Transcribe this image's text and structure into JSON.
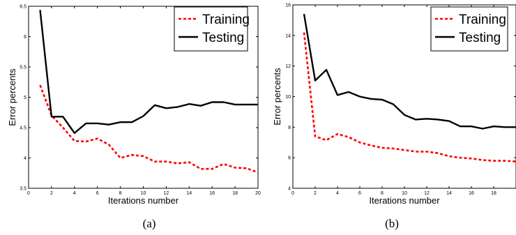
{
  "chart_data": [
    {
      "type": "line",
      "caption": "(a)",
      "xlabel": "Iterations number",
      "ylabel": "Error percents",
      "xlim": [
        0,
        20
      ],
      "ylim": [
        3.5,
        6.5
      ],
      "xticks": [
        0,
        2,
        4,
        6,
        8,
        10,
        12,
        14,
        16,
        18,
        20
      ],
      "yticks": [
        3.5,
        4,
        4.5,
        5,
        5.5,
        6,
        6.5
      ],
      "grid": false,
      "legend_position": "top-right",
      "x": [
        1,
        2,
        3,
        4,
        5,
        6,
        7,
        8,
        9,
        10,
        11,
        12,
        13,
        14,
        15,
        16,
        17,
        18,
        19,
        20
      ],
      "series": [
        {
          "name": "Training",
          "color": "#ff0000",
          "style": "dashed",
          "values": [
            5.2,
            4.7,
            4.5,
            4.28,
            4.27,
            4.32,
            4.22,
            4.0,
            4.05,
            4.03,
            3.94,
            3.94,
            3.91,
            3.93,
            3.82,
            3.82,
            3.9,
            3.84,
            3.83,
            3.76
          ]
        },
        {
          "name": "Testing",
          "color": "#000000",
          "style": "solid",
          "values": [
            6.44,
            4.68,
            4.68,
            4.41,
            4.57,
            4.57,
            4.55,
            4.59,
            4.59,
            4.69,
            4.87,
            4.82,
            4.84,
            4.89,
            4.86,
            4.92,
            4.92,
            4.88,
            4.88,
            4.88
          ]
        }
      ]
    },
    {
      "type": "line",
      "caption": "(b)",
      "xlabel": "Iterations number",
      "ylabel": "Error percents",
      "xlim": [
        0,
        20
      ],
      "ylim": [
        4,
        16
      ],
      "xticks": [
        0,
        2,
        4,
        6,
        8,
        10,
        12,
        14,
        16,
        18
      ],
      "yticks": [
        4,
        6,
        8,
        10,
        12,
        14,
        16
      ],
      "grid": false,
      "legend_position": "top-right",
      "x": [
        1,
        2,
        3,
        4,
        5,
        6,
        7,
        8,
        9,
        10,
        11,
        12,
        13,
        14,
        15,
        16,
        17,
        18,
        19,
        20
      ],
      "series": [
        {
          "name": "Training",
          "color": "#ff0000",
          "style": "dashed",
          "values": [
            14.2,
            7.4,
            7.15,
            7.55,
            7.35,
            7.0,
            6.8,
            6.65,
            6.6,
            6.5,
            6.4,
            6.4,
            6.3,
            6.1,
            6.0,
            5.95,
            5.85,
            5.8,
            5.8,
            5.75
          ]
        },
        {
          "name": "Testing",
          "color": "#000000",
          "style": "solid",
          "values": [
            15.4,
            11.05,
            11.75,
            10.1,
            10.3,
            10.0,
            9.85,
            9.8,
            9.5,
            8.8,
            8.5,
            8.55,
            8.5,
            8.4,
            8.05,
            8.05,
            7.9,
            8.05,
            8.0,
            8.0
          ]
        }
      ]
    }
  ]
}
